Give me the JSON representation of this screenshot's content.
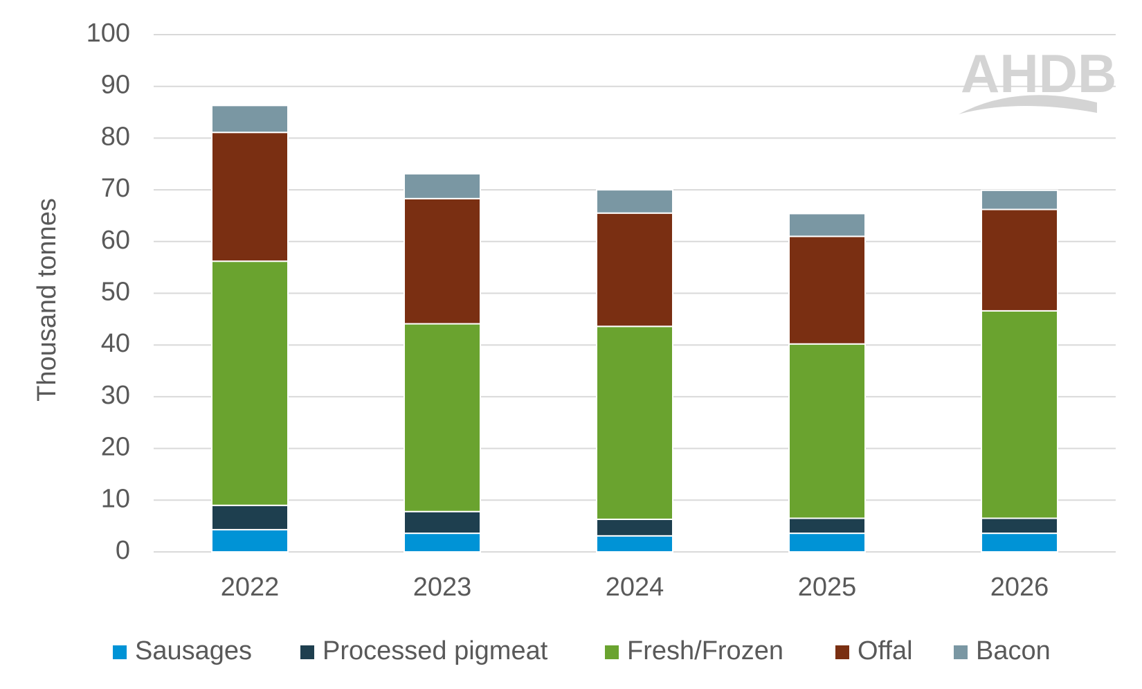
{
  "chart_data": {
    "type": "bar",
    "stacked": true,
    "categories": [
      "2022",
      "2023",
      "2024",
      "2025",
      "2026"
    ],
    "series": [
      {
        "name": "Sausages",
        "color": "#0093d6",
        "values": [
          4.3,
          3.6,
          3.1,
          3.6,
          3.6
        ]
      },
      {
        "name": "Processed pigmeat",
        "color": "#1e3f4f",
        "values": [
          4.7,
          4.2,
          3.2,
          2.9,
          2.9
        ]
      },
      {
        "name": "Fresh/Frozen",
        "color": "#6aa32f",
        "values": [
          47.2,
          36.3,
          37.3,
          33.7,
          40.1
        ]
      },
      {
        "name": "Offal",
        "color": "#7a2f12",
        "values": [
          24.9,
          24.2,
          21.9,
          20.8,
          19.6
        ]
      },
      {
        "name": "Bacon",
        "color": "#7a97a3",
        "values": [
          5.2,
          4.8,
          4.5,
          4.4,
          3.7
        ]
      }
    ],
    "yticks": [
      "0",
      "10",
      "20",
      "30",
      "40",
      "50",
      "60",
      "70",
      "80",
      "90",
      "100"
    ],
    "ylabel": "Thousand tonnes",
    "xlabel": "",
    "ylim": [
      0,
      100
    ],
    "grid": true,
    "legend_position": "bottom"
  },
  "logo": {
    "text": "AHDB",
    "icon": "ahdb-logo-watermark"
  }
}
